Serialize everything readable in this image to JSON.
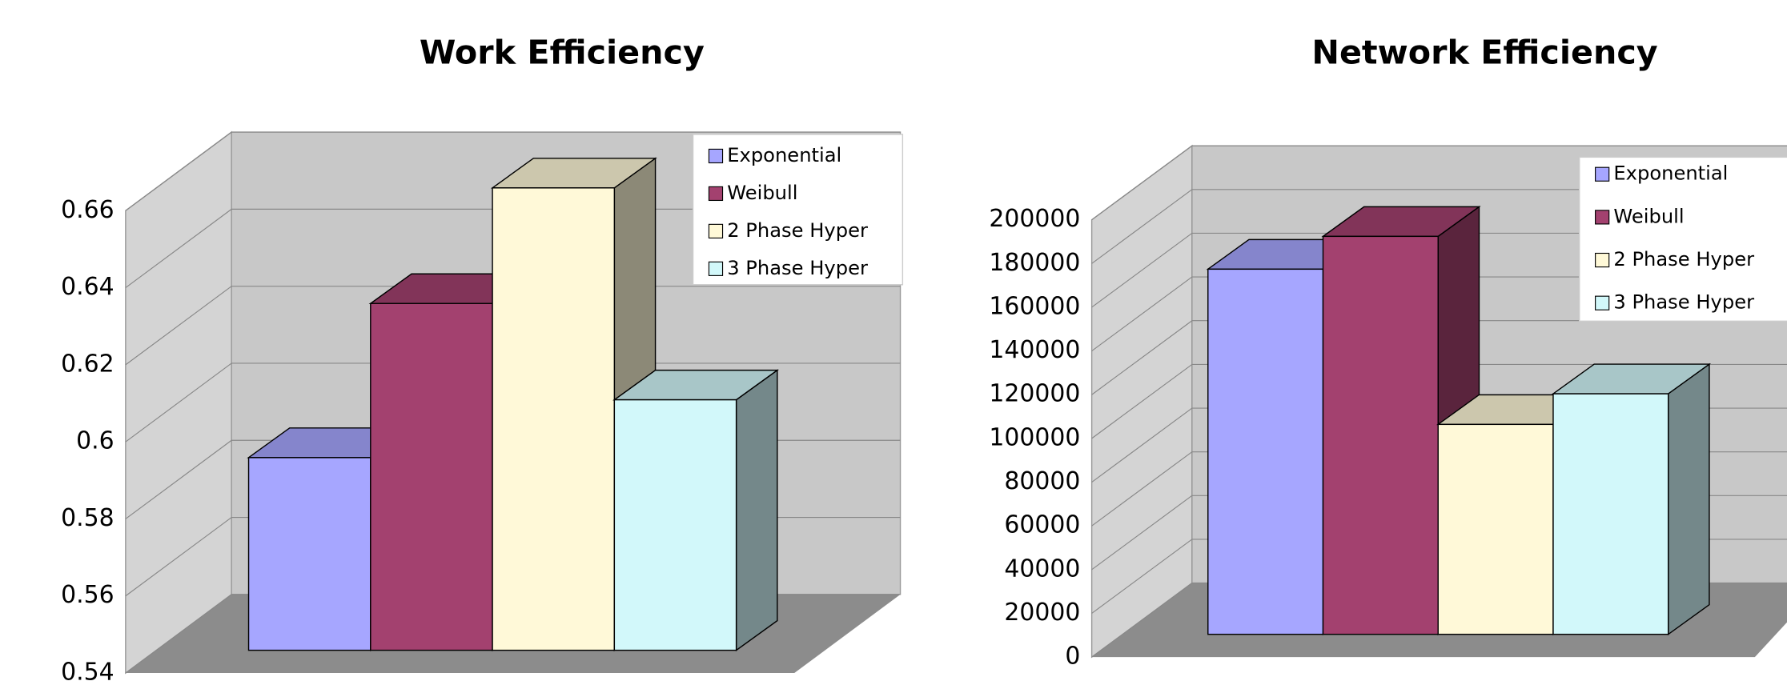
{
  "chart_data": [
    {
      "type": "bar",
      "title": "Work Efficiency",
      "ylim": [
        0.54,
        0.66
      ],
      "yticks": [
        0.54,
        0.56,
        0.58,
        0.6,
        0.62,
        0.64,
        0.66
      ],
      "grid": true,
      "legend": "upper right",
      "series": [
        {
          "name": "Exponential",
          "color": "#a6a6ff",
          "values": [
            0.59
          ]
        },
        {
          "name": "Weibull",
          "color": "#a3416f",
          "values": [
            0.63
          ]
        },
        {
          "name": "2 Phase Hyper",
          "color": "#fff9d8",
          "values": [
            0.66
          ]
        },
        {
          "name": "3 Phase Hyper",
          "color": "#d2f8fa",
          "values": [
            0.605
          ]
        }
      ]
    },
    {
      "type": "bar",
      "title": "Network Efficiency",
      "ylim": [
        0,
        200000
      ],
      "yticks": [
        0,
        20000,
        40000,
        60000,
        80000,
        100000,
        120000,
        140000,
        160000,
        180000,
        200000
      ],
      "grid": true,
      "legend": "upper right",
      "series": [
        {
          "name": "Exponential",
          "color": "#a6a6ff",
          "values": [
            167000
          ]
        },
        {
          "name": "Weibull",
          "color": "#a3416f",
          "values": [
            182000
          ]
        },
        {
          "name": "2 Phase Hyper",
          "color": "#fff9d8",
          "values": [
            96000
          ]
        },
        {
          "name": "3 Phase Hyper",
          "color": "#d2f8fa",
          "values": [
            110000
          ]
        }
      ]
    }
  ]
}
